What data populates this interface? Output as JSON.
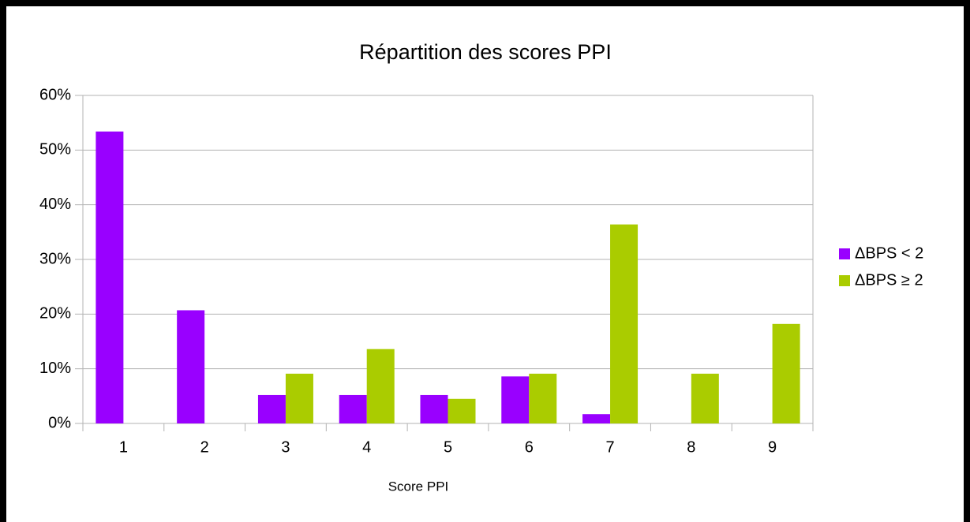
{
  "chart_data": {
    "type": "bar",
    "title": "Répartition des scores PPI",
    "x_label": "Score PPI",
    "categories": [
      "1",
      "2",
      "3",
      "4",
      "5",
      "6",
      "7",
      "8",
      "9"
    ],
    "series": [
      {
        "name": "ΔBPS < 2",
        "color": "#9900ff",
        "values": [
          53.4,
          20.7,
          5.2,
          5.2,
          5.2,
          8.6,
          1.7,
          0,
          0
        ]
      },
      {
        "name": "ΔBPS ≥ 2",
        "color": "#aacc00",
        "values": [
          0,
          0,
          9.1,
          13.6,
          4.5,
          9.1,
          36.4,
          9.1,
          18.2
        ]
      }
    ],
    "ylim": [
      0,
      60
    ],
    "yticks": [
      {
        "value": 0,
        "label": "0%"
      },
      {
        "value": 10,
        "label": "10%"
      },
      {
        "value": 20,
        "label": "20%"
      },
      {
        "value": 30,
        "label": "30%"
      },
      {
        "value": 40,
        "label": "40%"
      },
      {
        "value": 50,
        "label": "50%"
      },
      {
        "value": 60,
        "label": "60%"
      }
    ],
    "grid": true,
    "legend": "right"
  }
}
